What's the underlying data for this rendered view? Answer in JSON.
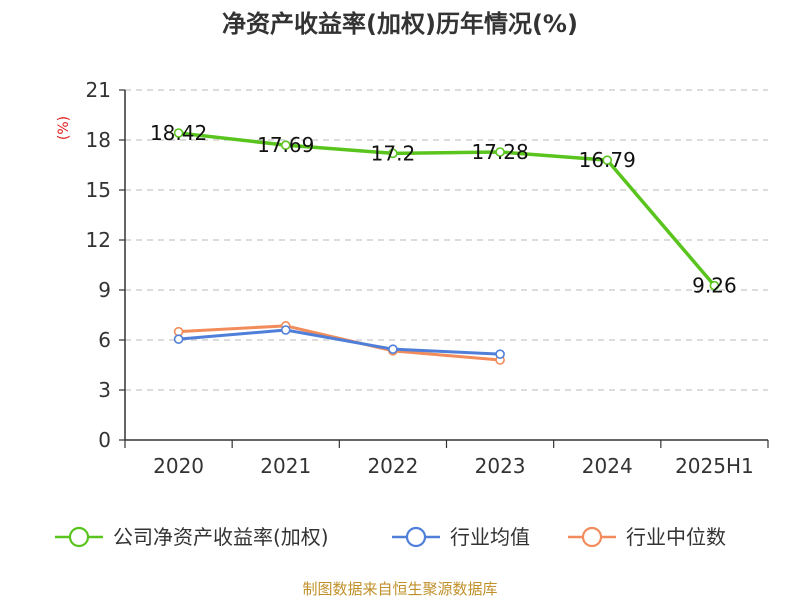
{
  "chart_data": {
    "type": "line",
    "title": "净资产收益率(加权)历年情况(%)",
    "ylabel": "(%)",
    "xlabel": "",
    "categories": [
      "2020",
      "2021",
      "2022",
      "2023",
      "2024",
      "2025H1"
    ],
    "ylim": [
      0,
      21
    ],
    "yticks": [
      0,
      3,
      6,
      9,
      12,
      15,
      18,
      21
    ],
    "grid": "horizontal-dashed",
    "legend_position": "bottom",
    "series": [
      {
        "name": "公司净资产收益率(加权)",
        "color": "#5ac41e",
        "values": [
          18.42,
          17.69,
          17.2,
          17.28,
          16.79,
          9.26
        ],
        "labels": [
          "18.42",
          "17.69",
          "17.2",
          "17.28",
          "16.79",
          "9.26"
        ]
      },
      {
        "name": "行业均值",
        "color": "#4f7fd8",
        "values": [
          6.05,
          6.6,
          5.45,
          5.15,
          null,
          null
        ]
      },
      {
        "name": "行业中位数",
        "color": "#f28c5a",
        "values": [
          6.5,
          6.85,
          5.35,
          4.8,
          null,
          null
        ]
      }
    ]
  },
  "footer": {
    "source": "制图数据来自恒生聚源数据库"
  }
}
